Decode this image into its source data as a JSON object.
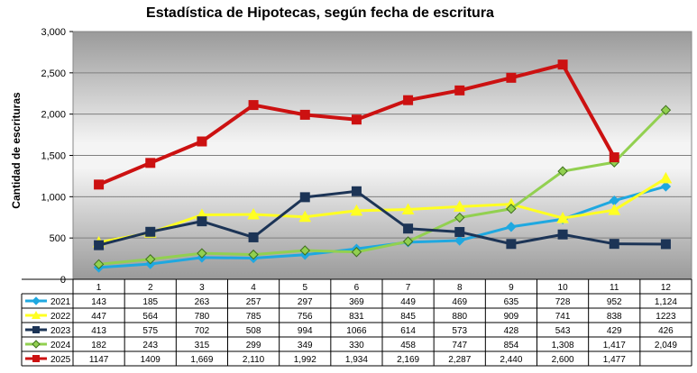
{
  "chart_data": {
    "type": "line",
    "title": "Estadística de Hipotecas, según fecha de escritura",
    "xlabel": "",
    "ylabel": "Cantidad de escrituras",
    "ylim": [
      0,
      3000
    ],
    "y_ticks": [
      "0",
      "500",
      "1,000",
      "1,500",
      "2,000",
      "2,500",
      "3,000"
    ],
    "y_tick_values": [
      0,
      500,
      1000,
      1500,
      2000,
      2500,
      3000
    ],
    "categories": [
      "1",
      "2",
      "3",
      "4",
      "5",
      "6",
      "7",
      "8",
      "9",
      "10",
      "11",
      "12"
    ],
    "grid": true,
    "legend": "table-below",
    "series": [
      {
        "name": "2021",
        "color": "#1fa8e0",
        "marker": "diamond",
        "values": [
          143,
          185,
          263,
          257,
          297,
          369,
          449,
          469,
          635,
          728,
          952,
          1124
        ],
        "labels": [
          "143",
          "185",
          "263",
          "257",
          "297",
          "369",
          "449",
          "469",
          "635",
          "728",
          "952",
          "1,124"
        ]
      },
      {
        "name": "2022",
        "color": "#ffff22",
        "marker": "triangle",
        "values": [
          447,
          564,
          780,
          785,
          756,
          831,
          845,
          880,
          909,
          741,
          838,
          1223
        ],
        "labels": [
          "447",
          "564",
          "780",
          "785",
          "756",
          "831",
          "845",
          "880",
          "909",
          "741",
          "838",
          "1223"
        ]
      },
      {
        "name": "2023",
        "color": "#1c3456",
        "marker": "square",
        "values": [
          413,
          575,
          702,
          508,
          994,
          1066,
          614,
          573,
          428,
          543,
          429,
          426
        ],
        "labels": [
          "413",
          "575",
          "702",
          "508",
          "994",
          "1066",
          "614",
          "573",
          "428",
          "543",
          "429",
          "426"
        ]
      },
      {
        "name": "2024",
        "color": "#92d050",
        "marker": "diamond",
        "values": [
          182,
          243,
          315,
          299,
          349,
          330,
          458,
          747,
          854,
          1308,
          1417,
          2049
        ],
        "labels": [
          "182",
          "243",
          "315",
          "299",
          "349",
          "330",
          "458",
          "747",
          "854",
          "1,308",
          "1,417",
          "2,049"
        ]
      },
      {
        "name": "2025",
        "color": "#cc1111",
        "marker": "square",
        "values": [
          1147,
          1409,
          1669,
          2110,
          1992,
          1934,
          2169,
          2287,
          2440,
          2600,
          1477,
          null
        ],
        "labels": [
          "1147",
          "1409",
          "1,669",
          "2,110",
          "1,992",
          "1,934",
          "2,169",
          "2,287",
          "2,440",
          "2,600",
          "1,477",
          ""
        ]
      }
    ]
  }
}
